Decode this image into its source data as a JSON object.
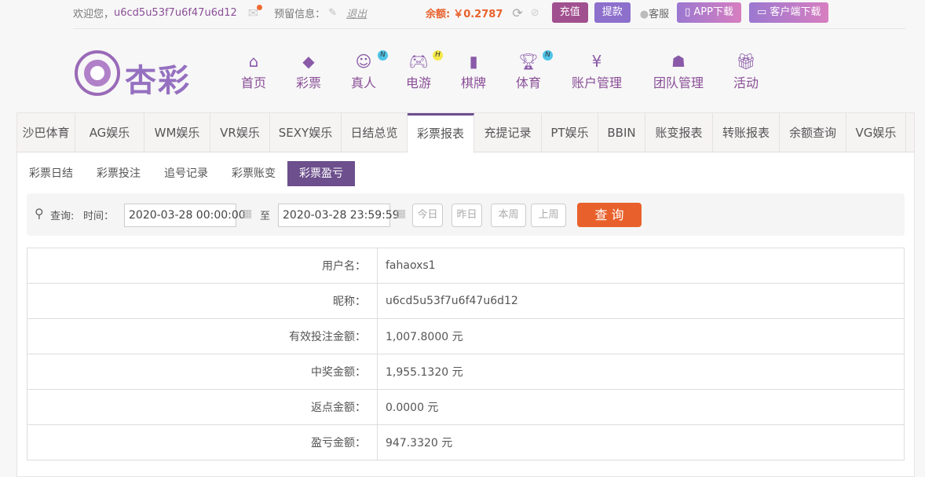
{
  "topbar": {
    "welcome": "欢迎您，",
    "username": "u6cd5u53f7u6f47u6d12",
    "reserved_label": "预留信息：",
    "logout": "退出",
    "balance_label": "余额:",
    "balance_value": "￥0.2787",
    "recharge": "充值",
    "withdraw": "提款",
    "service": "客服",
    "app_download": "APP下载",
    "client_download": "客户端下载"
  },
  "logo": {
    "text": "杏彩"
  },
  "nav": [
    {
      "label": "首页",
      "icon": "home-icon"
    },
    {
      "label": "彩票",
      "icon": "lottery-icon"
    },
    {
      "label": "真人",
      "icon": "live-dealer-icon",
      "badge": "N"
    },
    {
      "label": "电游",
      "icon": "gamepad-icon",
      "badge": "H"
    },
    {
      "label": "棋牌",
      "icon": "cards-icon"
    },
    {
      "label": "体育",
      "icon": "trophy-icon",
      "badge": "N"
    },
    {
      "label": "账户管理",
      "icon": "yen-coin-icon"
    },
    {
      "label": "团队管理",
      "icon": "team-icon"
    },
    {
      "label": "活动",
      "icon": "gift-icon"
    }
  ],
  "tabs": [
    "沙巴体育",
    "AG娱乐",
    "WM娱乐",
    "VR娱乐",
    "SEXY娱乐",
    "日结总览",
    "彩票报表",
    "充提记录",
    "PT娱乐",
    "BBIN",
    "账变报表",
    "转账报表",
    "余额查询",
    "VG娱乐"
  ],
  "active_tab": "彩票报表",
  "subtabs": [
    "彩票日结",
    "彩票投注",
    "追号记录",
    "彩票账变",
    "彩票盈亏"
  ],
  "active_subtab": "彩票盈亏",
  "search": {
    "query_label": "查询:",
    "time_label": "时间：",
    "start": "2020-03-28 00:00:00",
    "to": "至",
    "end": "2020-03-28 23:59:59",
    "today": "今日",
    "yesterday": "昨日",
    "this_week": "本周",
    "last_week": "上周",
    "submit": "查 询"
  },
  "rows": [
    {
      "label": "用户名：",
      "value": "fahaoxs1"
    },
    {
      "label": "昵称：",
      "value": "u6cd5u53f7u6f47u6d12"
    },
    {
      "label": "有效投注金额：",
      "value": "1,007.8000 元"
    },
    {
      "label": "中奖金额：",
      "value": "1,955.1320 元"
    },
    {
      "label": "返点金额：",
      "value": "0.0000 元"
    },
    {
      "label": "盈亏金额：",
      "value": "947.3320 元"
    }
  ],
  "colors": {
    "primary": "#6c4f8c",
    "accent": "#e8612c",
    "balance": "#e8612c"
  }
}
